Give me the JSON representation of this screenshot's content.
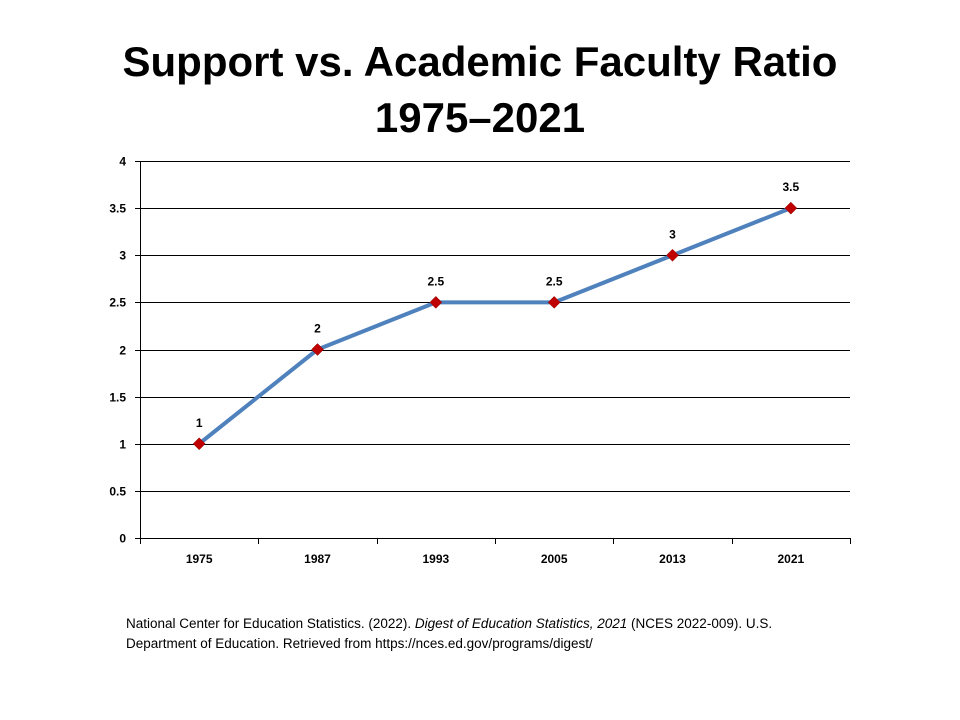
{
  "title": {
    "line1": "Support vs. Academic Faculty Ratio",
    "line2": "1975–2021"
  },
  "chart_data": {
    "type": "line",
    "categories": [
      "1975",
      "1987",
      "1993",
      "2005",
      "2013",
      "2021"
    ],
    "series": [
      {
        "values": [
          1,
          2,
          2.5,
          2.5,
          3,
          3.5
        ],
        "data_labels": [
          "1",
          "2",
          "2.5",
          "2.5",
          "3",
          "3.5"
        ],
        "line_color": "#4F81BD",
        "marker_color": "#C00000",
        "marker": "diamond"
      }
    ],
    "xlabel": "",
    "ylabel": "",
    "ylim": [
      0,
      4
    ],
    "yticks": [
      0,
      0.5,
      1,
      1.5,
      2,
      2.5,
      3,
      3.5,
      4
    ],
    "ytick_labels": [
      "0",
      "0.5",
      "1",
      "1.5",
      "2",
      "2.5",
      "3",
      "3.5",
      "4"
    ],
    "grid": true
  },
  "citation": {
    "part1": "National Center for Education Statistics. (2022). ",
    "title_italic": "Digest of Education Statistics, 2021",
    "part2": " (NCES 2022-009). U.S. Department of Education. Retrieved from https://nces.ed.gov/programs/digest/"
  }
}
